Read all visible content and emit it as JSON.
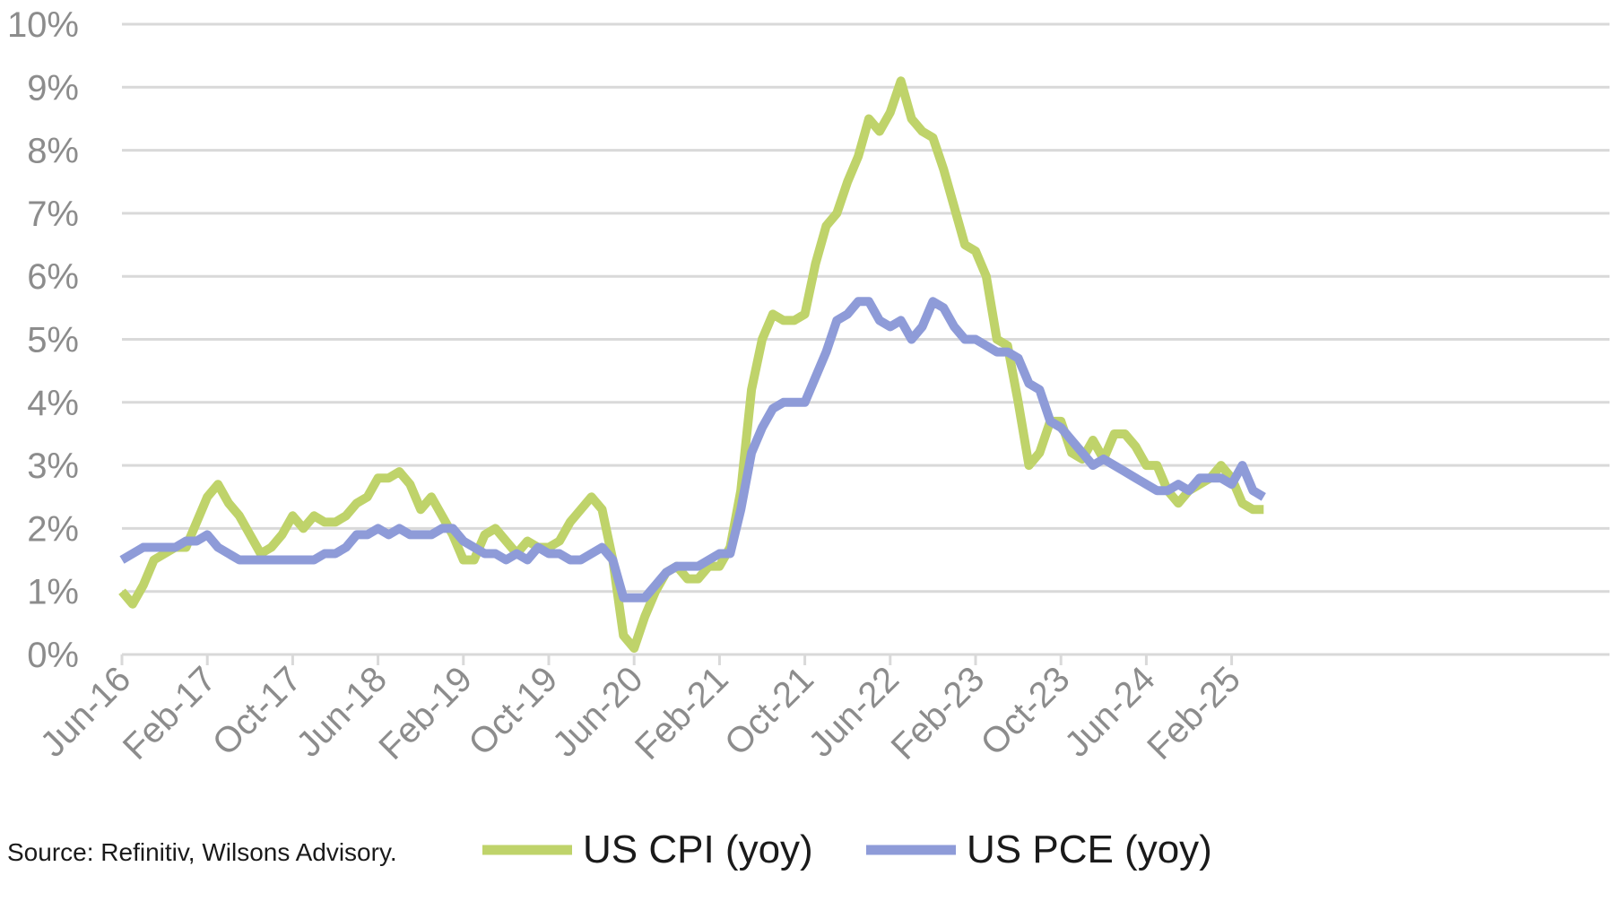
{
  "chart_data": {
    "type": "line",
    "title": "",
    "xlabel": "",
    "ylabel": "",
    "ylim": [
      0,
      10
    ],
    "yticks": [
      "0%",
      "1%",
      "2%",
      "3%",
      "4%",
      "5%",
      "6%",
      "7%",
      "8%",
      "9%",
      "10%"
    ],
    "x_start": "Jun-16",
    "x_labels": [
      "Jun-16",
      "Feb-17",
      "Oct-17",
      "Jun-18",
      "Feb-19",
      "Oct-19",
      "Jun-20",
      "Feb-21",
      "Oct-21",
      "Jun-22",
      "Feb-23",
      "Oct-23",
      "Jun-24",
      "Feb-25"
    ],
    "grid": "horizontal",
    "legend_position": "bottom",
    "source": "Source: Refinitiv, Wilsons Advisory.",
    "series": [
      {
        "name": "US CPI (yoy)",
        "color": "#bfd36a",
        "values": [
          1.0,
          0.8,
          1.1,
          1.5,
          1.6,
          1.7,
          1.7,
          2.1,
          2.5,
          2.7,
          2.4,
          2.2,
          1.9,
          1.6,
          1.7,
          1.9,
          2.2,
          2.0,
          2.2,
          2.1,
          2.1,
          2.2,
          2.4,
          2.5,
          2.8,
          2.8,
          2.9,
          2.7,
          2.3,
          2.5,
          2.2,
          1.9,
          1.5,
          1.5,
          1.9,
          2.0,
          1.8,
          1.6,
          1.8,
          1.7,
          1.7,
          1.8,
          2.1,
          2.3,
          2.5,
          2.3,
          1.5,
          0.3,
          0.1,
          0.6,
          1.0,
          1.3,
          1.4,
          1.2,
          1.2,
          1.4,
          1.4,
          1.7,
          2.6,
          4.2,
          5.0,
          5.4,
          5.3,
          5.3,
          5.4,
          6.2,
          6.8,
          7.0,
          7.5,
          7.9,
          8.5,
          8.3,
          8.6,
          9.1,
          8.5,
          8.3,
          8.2,
          7.7,
          7.1,
          6.5,
          6.4,
          6.0,
          5.0,
          4.9,
          4.0,
          3.0,
          3.2,
          3.7,
          3.7,
          3.2,
          3.1,
          3.4,
          3.1,
          3.5,
          3.5,
          3.3,
          3.0,
          3.0,
          2.6,
          2.4,
          2.6,
          2.7,
          2.8,
          3.0,
          2.8,
          2.4,
          2.3,
          2.3
        ]
      },
      {
        "name": "US PCE (yoy)",
        "color": "#8e9bd8",
        "values": [
          1.5,
          1.6,
          1.7,
          1.7,
          1.7,
          1.7,
          1.8,
          1.8,
          1.9,
          1.7,
          1.6,
          1.5,
          1.5,
          1.5,
          1.5,
          1.5,
          1.5,
          1.5,
          1.5,
          1.6,
          1.6,
          1.7,
          1.9,
          1.9,
          2.0,
          1.9,
          2.0,
          1.9,
          1.9,
          1.9,
          2.0,
          2.0,
          1.8,
          1.7,
          1.6,
          1.6,
          1.5,
          1.6,
          1.5,
          1.7,
          1.6,
          1.6,
          1.5,
          1.5,
          1.6,
          1.7,
          1.5,
          0.9,
          0.9,
          0.9,
          1.1,
          1.3,
          1.4,
          1.4,
          1.4,
          1.5,
          1.6,
          1.6,
          2.3,
          3.2,
          3.6,
          3.9,
          4.0,
          4.0,
          4.0,
          4.4,
          4.8,
          5.3,
          5.4,
          5.6,
          5.6,
          5.3,
          5.2,
          5.3,
          5.0,
          5.2,
          5.6,
          5.5,
          5.2,
          5.0,
          5.0,
          4.9,
          4.8,
          4.8,
          4.7,
          4.3,
          4.2,
          3.7,
          3.6,
          3.4,
          3.2,
          3.0,
          3.1,
          3.0,
          2.9,
          2.8,
          2.7,
          2.6,
          2.6,
          2.7,
          2.6,
          2.8,
          2.8,
          2.8,
          2.7,
          3.0,
          2.6,
          2.5
        ]
      }
    ]
  }
}
